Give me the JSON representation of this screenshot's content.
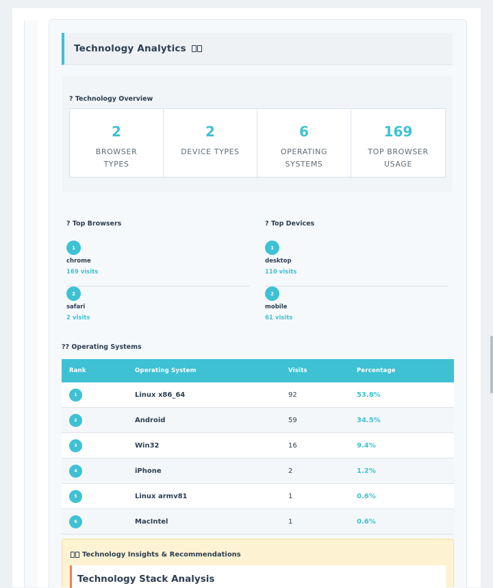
{
  "header": {
    "title": "Technology Analytics",
    "icon": "unknown-glyph-icon"
  },
  "overview": {
    "label": "? Technology Overview",
    "stats": [
      {
        "value": "2",
        "label": "BROWSER TYPES"
      },
      {
        "value": "2",
        "label": "DEVICE TYPES"
      },
      {
        "value": "6",
        "label": "OPERATING SYSTEMS"
      },
      {
        "value": "169",
        "label": "TOP BROWSER USAGE"
      }
    ]
  },
  "browsers": {
    "label": "? Top Browsers",
    "items": [
      {
        "rank": "1",
        "name": "chrome",
        "visits": "169 visits"
      },
      {
        "rank": "2",
        "name": "safari",
        "visits": "2 visits"
      }
    ]
  },
  "devices": {
    "label": "? Top Devices",
    "items": [
      {
        "rank": "1",
        "name": "desktop",
        "visits": "110 visits"
      },
      {
        "rank": "2",
        "name": "mobile",
        "visits": "61 visits"
      }
    ]
  },
  "os_section": {
    "label": "?? Operating Systems",
    "headers": {
      "rank": "Rank",
      "os": "Operating System",
      "visits": "Visits",
      "percentage": "Percentage"
    },
    "rows": [
      {
        "rank": "1",
        "os": "Linux x86_64",
        "visits": "92",
        "percentage": "53.8%"
      },
      {
        "rank": "2",
        "os": "Android",
        "visits": "59",
        "percentage": "34.5%"
      },
      {
        "rank": "3",
        "os": "Win32",
        "visits": "16",
        "percentage": "9.4%"
      },
      {
        "rank": "4",
        "os": "iPhone",
        "visits": "2",
        "percentage": "1.2%"
      },
      {
        "rank": "5",
        "os": "Linux armv81",
        "visits": "1",
        "percentage": "0.6%"
      },
      {
        "rank": "6",
        "os": "MacIntel",
        "visits": "1",
        "percentage": "0.6%"
      }
    ]
  },
  "insights": {
    "title": "Technology Insights & Recommendations",
    "card_title": "Technology Stack Analysis"
  },
  "colors": {
    "accent": "#3ec1d3",
    "insight_bg": "#fdf3d3",
    "insight_border": "#ef7d57"
  }
}
